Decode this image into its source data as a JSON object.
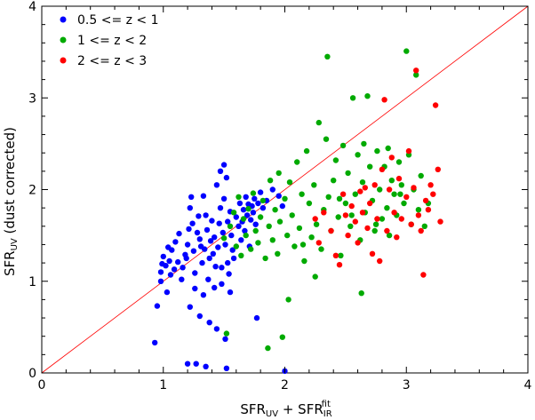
{
  "chart_data": {
    "type": "scatter",
    "xlabel": {
      "main": "SFR",
      "sub": "UV",
      "plus": " + SFR",
      "sub2": "IR",
      "sup2": "fit"
    },
    "ylabel": {
      "main": "SFR",
      "sub": "UV",
      "rest": " (dust corrected)"
    },
    "xlim": [
      0,
      4
    ],
    "ylim": [
      0,
      4
    ],
    "xticks": [
      "0",
      "1",
      "2",
      "3",
      "4"
    ],
    "yticks": [
      "0",
      "1",
      "2",
      "3",
      "4"
    ],
    "grid": false,
    "legend_position": "top-left",
    "one_to_one_line": {
      "from": [
        0,
        0
      ],
      "to": [
        4,
        4
      ],
      "color": "#ff0000"
    },
    "series": [
      {
        "name": "0.5 <= z < 1",
        "color": "#0000ff",
        "points": [
          [
            0.93,
            0.33
          ],
          [
            0.95,
            0.73
          ],
          [
            0.98,
            1.0
          ],
          [
            0.98,
            1.1
          ],
          [
            0.99,
            1.19
          ],
          [
            1.0,
            1.27
          ],
          [
            1.02,
            1.17
          ],
          [
            1.03,
            0.88
          ],
          [
            1.04,
            1.37
          ],
          [
            1.05,
            1.22
          ],
          [
            1.06,
            1.07
          ],
          [
            1.07,
            1.34
          ],
          [
            1.09,
            1.13
          ],
          [
            1.1,
            1.43
          ],
          [
            1.12,
            1.21
          ],
          [
            1.13,
            1.52
          ],
          [
            1.15,
            1.02
          ],
          [
            1.16,
            1.15
          ],
          [
            1.18,
            1.29
          ],
          [
            1.19,
            1.25
          ],
          [
            1.2,
            1.4
          ],
          [
            1.21,
            1.57
          ],
          [
            1.22,
            1.8
          ],
          [
            1.22,
            0.72
          ],
          [
            1.23,
            1.92
          ],
          [
            1.24,
            1.63
          ],
          [
            1.25,
            1.33
          ],
          [
            1.26,
            1.09
          ],
          [
            1.26,
            0.92
          ],
          [
            1.27,
            0.1
          ],
          [
            1.28,
            1.53
          ],
          [
            1.29,
            1.71
          ],
          [
            1.3,
            1.46
          ],
          [
            1.3,
            0.62
          ],
          [
            1.31,
            1.38
          ],
          [
            1.32,
            1.2
          ],
          [
            1.33,
            1.93
          ],
          [
            1.33,
            0.85
          ],
          [
            1.34,
            1.35
          ],
          [
            1.35,
            1.72
          ],
          [
            1.36,
            1.56
          ],
          [
            1.37,
            1.02
          ],
          [
            1.38,
            0.55
          ],
          [
            1.38,
            1.25
          ],
          [
            1.39,
            1.44
          ],
          [
            1.4,
            1.66
          ],
          [
            1.41,
            1.3
          ],
          [
            1.42,
            1.48
          ],
          [
            1.42,
            0.93
          ],
          [
            1.43,
            1.16
          ],
          [
            1.44,
            2.05
          ],
          [
            1.44,
            0.48
          ],
          [
            1.45,
            1.37
          ],
          [
            1.46,
            1.63
          ],
          [
            1.47,
            1.8
          ],
          [
            1.47,
            2.2
          ],
          [
            1.48,
            1.15
          ],
          [
            1.48,
            0.97
          ],
          [
            1.49,
            1.53
          ],
          [
            1.5,
            1.9
          ],
          [
            1.5,
            2.27
          ],
          [
            1.51,
            1.4
          ],
          [
            1.51,
            0.37
          ],
          [
            1.52,
            2.13
          ],
          [
            1.52,
            0.05
          ],
          [
            1.53,
            1.65
          ],
          [
            1.53,
            1.2
          ],
          [
            1.54,
            1.08
          ],
          [
            1.55,
            1.76
          ],
          [
            1.55,
            0.88
          ],
          [
            1.56,
            1.5
          ],
          [
            1.57,
            1.34
          ],
          [
            1.58,
            1.25
          ],
          [
            1.6,
            1.7
          ],
          [
            1.62,
            1.6
          ],
          [
            1.63,
            1.85
          ],
          [
            1.64,
            1.45
          ],
          [
            1.65,
            1.65
          ],
          [
            1.66,
            1.78
          ],
          [
            1.67,
            1.55
          ],
          [
            1.68,
            1.92
          ],
          [
            1.69,
            1.72
          ],
          [
            1.7,
            1.84
          ],
          [
            1.71,
            1.38
          ],
          [
            1.72,
            1.67
          ],
          [
            1.73,
            1.82
          ],
          [
            1.74,
            1.75
          ],
          [
            1.75,
            1.9
          ],
          [
            1.76,
            1.62
          ],
          [
            1.77,
            0.6
          ],
          [
            1.78,
            1.85
          ],
          [
            1.8,
            1.97
          ],
          [
            1.82,
            1.8
          ],
          [
            1.85,
            1.88
          ],
          [
            1.9,
            2.0
          ],
          [
            1.95,
            1.93
          ],
          [
            1.98,
            1.82
          ],
          [
            2.0,
            0.02
          ],
          [
            1.2,
            0.1
          ],
          [
            1.35,
            0.07
          ]
        ]
      },
      {
        "name": "1 <= z < 2",
        "color": "#00aa00",
        "points": [
          [
            1.5,
            1.47
          ],
          [
            1.52,
            0.43
          ],
          [
            1.55,
            1.6
          ],
          [
            1.58,
            1.75
          ],
          [
            1.6,
            1.38
          ],
          [
            1.62,
            1.92
          ],
          [
            1.64,
            1.28
          ],
          [
            1.66,
            1.68
          ],
          [
            1.68,
            1.5
          ],
          [
            1.7,
            1.79
          ],
          [
            1.72,
            1.35
          ],
          [
            1.74,
            1.96
          ],
          [
            1.76,
            1.55
          ],
          [
            1.78,
            1.42
          ],
          [
            1.8,
            1.7
          ],
          [
            1.82,
            1.88
          ],
          [
            1.84,
            1.25
          ],
          [
            1.86,
            0.27
          ],
          [
            1.87,
            1.6
          ],
          [
            1.88,
            2.1
          ],
          [
            1.9,
            1.45
          ],
          [
            1.92,
            1.78
          ],
          [
            1.94,
            1.3
          ],
          [
            1.95,
            2.18
          ],
          [
            1.96,
            1.65
          ],
          [
            1.98,
            0.39
          ],
          [
            2.0,
            1.9
          ],
          [
            2.02,
            1.5
          ],
          [
            2.03,
            0.8
          ],
          [
            2.04,
            2.08
          ],
          [
            2.06,
            1.72
          ],
          [
            2.08,
            1.38
          ],
          [
            2.1,
            2.3
          ],
          [
            2.12,
            1.58
          ],
          [
            2.14,
            1.95
          ],
          [
            2.16,
            1.22
          ],
          [
            2.18,
            2.42
          ],
          [
            2.2,
            1.85
          ],
          [
            2.22,
            1.48
          ],
          [
            2.24,
            2.05
          ],
          [
            2.26,
            1.62
          ],
          [
            2.28,
            2.73
          ],
          [
            2.3,
            1.35
          ],
          [
            2.32,
            1.78
          ],
          [
            2.34,
            2.55
          ],
          [
            2.35,
            3.45
          ],
          [
            2.36,
            1.92
          ],
          [
            2.38,
            1.55
          ],
          [
            2.4,
            2.1
          ],
          [
            2.42,
            2.32
          ],
          [
            2.44,
            1.7
          ],
          [
            2.46,
            1.28
          ],
          [
            2.48,
            2.48
          ],
          [
            2.5,
            1.85
          ],
          [
            2.52,
            2.18
          ],
          [
            2.54,
            1.6
          ],
          [
            2.56,
            3.0
          ],
          [
            2.58,
            1.95
          ],
          [
            2.6,
            2.38
          ],
          [
            2.62,
            1.45
          ],
          [
            2.63,
            0.87
          ],
          [
            2.64,
            2.08
          ],
          [
            2.66,
            1.75
          ],
          [
            2.68,
            3.02
          ],
          [
            2.7,
            2.25
          ],
          [
            2.72,
            1.88
          ],
          [
            2.74,
            1.55
          ],
          [
            2.76,
            2.42
          ],
          [
            2.78,
            2.0
          ],
          [
            2.8,
            1.68
          ],
          [
            2.82,
            2.25
          ],
          [
            2.84,
            1.8
          ],
          [
            2.86,
            1.5
          ],
          [
            2.88,
            2.1
          ],
          [
            2.9,
            1.95
          ],
          [
            2.92,
            1.72
          ],
          [
            2.94,
            2.3
          ],
          [
            2.96,
            2.05
          ],
          [
            2.98,
            1.85
          ],
          [
            3.0,
            3.51
          ],
          [
            3.02,
            2.38
          ],
          [
            3.04,
            1.62
          ],
          [
            3.06,
            2.0
          ],
          [
            3.08,
            3.25
          ],
          [
            3.1,
            1.78
          ],
          [
            3.12,
            2.15
          ],
          [
            3.15,
            1.6
          ],
          [
            3.18,
            1.85
          ],
          [
            2.15,
            1.4
          ],
          [
            2.25,
            1.05
          ],
          [
            2.45,
            1.9
          ],
          [
            2.55,
            1.72
          ],
          [
            2.65,
            2.5
          ],
          [
            2.75,
            1.62
          ],
          [
            2.85,
            2.45
          ],
          [
            2.95,
            1.95
          ]
        ]
      },
      {
        "name": "2 <= z < 3",
        "color": "#ff0000",
        "points": [
          [
            2.25,
            1.68
          ],
          [
            2.28,
            1.42
          ],
          [
            2.32,
            1.75
          ],
          [
            2.38,
            1.55
          ],
          [
            2.42,
            1.28
          ],
          [
            2.45,
            1.18
          ],
          [
            2.48,
            1.95
          ],
          [
            2.5,
            1.72
          ],
          [
            2.52,
            1.5
          ],
          [
            2.55,
            1.82
          ],
          [
            2.58,
            1.65
          ],
          [
            2.6,
            1.42
          ],
          [
            2.62,
            1.98
          ],
          [
            2.64,
            1.75
          ],
          [
            2.66,
            2.02
          ],
          [
            2.68,
            1.58
          ],
          [
            2.7,
            1.85
          ],
          [
            2.72,
            1.3
          ],
          [
            2.74,
            2.05
          ],
          [
            2.76,
            1.68
          ],
          [
            2.78,
            1.22
          ],
          [
            2.8,
            2.22
          ],
          [
            2.82,
            2.98
          ],
          [
            2.84,
            1.55
          ],
          [
            2.86,
            2.0
          ],
          [
            2.88,
            2.35
          ],
          [
            2.9,
            1.75
          ],
          [
            2.92,
            1.48
          ],
          [
            2.94,
            2.12
          ],
          [
            2.96,
            1.68
          ],
          [
            3.0,
            1.92
          ],
          [
            3.02,
            2.42
          ],
          [
            3.04,
            1.62
          ],
          [
            3.06,
            2.02
          ],
          [
            3.08,
            3.3
          ],
          [
            3.1,
            1.72
          ],
          [
            3.12,
            1.55
          ],
          [
            3.14,
            1.07
          ],
          [
            3.16,
            1.88
          ],
          [
            3.18,
            1.78
          ],
          [
            3.2,
            2.05
          ],
          [
            3.22,
            1.95
          ],
          [
            3.24,
            2.92
          ],
          [
            3.26,
            2.22
          ],
          [
            3.28,
            1.65
          ]
        ]
      }
    ]
  }
}
